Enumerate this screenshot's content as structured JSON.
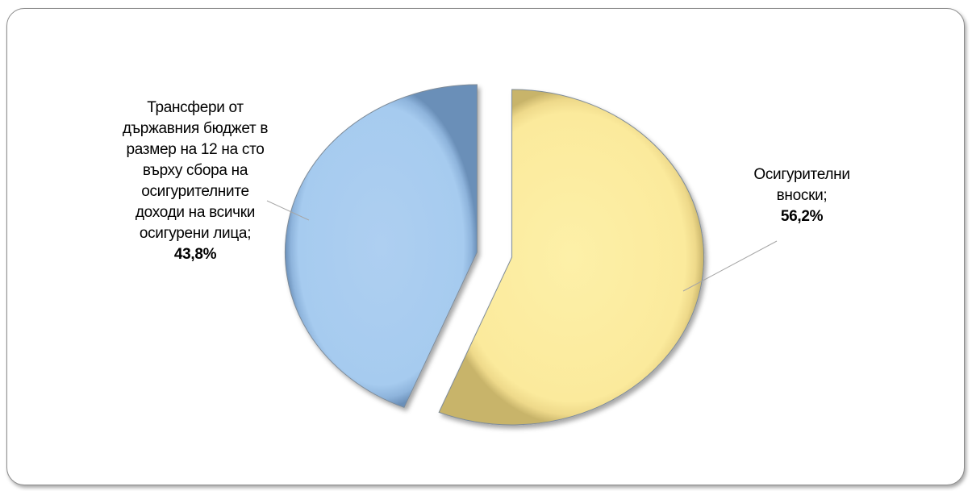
{
  "chart_data": {
    "type": "pie",
    "title": "",
    "exploded": true,
    "slices": [
      {
        "label_lines": [
          "Трансфери от",
          "държавния бюджет в",
          "размер на 12 на сто",
          "върху сбора на",
          "осигурителните",
          "доходи на всички",
          "осигурени лица;"
        ],
        "value": 43.8,
        "value_label": "43,8%",
        "color": "#a9cdf0"
      },
      {
        "label_lines": [
          "Осигурителни",
          "вноски;"
        ],
        "value": 56.2,
        "value_label": "56,2%",
        "color": "#fbe99a"
      }
    ]
  }
}
